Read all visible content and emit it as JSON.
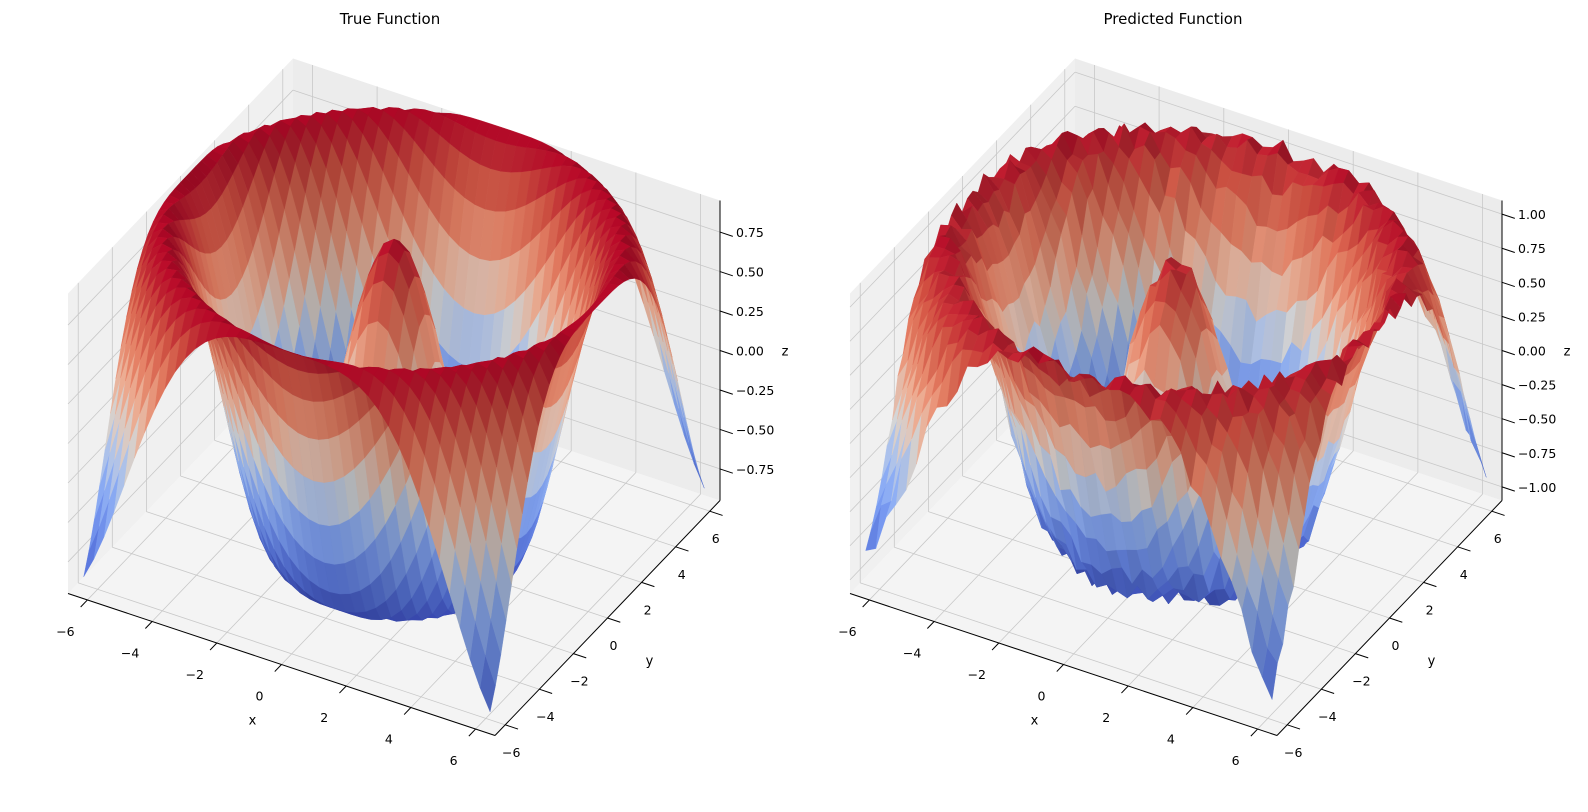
{
  "chart_data": [
    {
      "type": "surface3d",
      "title": "True Function",
      "xlabel": "x",
      "ylabel": "y",
      "zlabel": "z",
      "surface": "z = cos(sqrt(x^2 + y^2))",
      "x_range": [
        -6.283,
        6.283
      ],
      "y_range": [
        -6.283,
        6.283
      ],
      "zlim": [
        -0.95,
        0.95
      ],
      "colormap": "coolwarm",
      "xticks": [
        "−6",
        "−4",
        "−2",
        "0",
        "2",
        "4",
        "6"
      ],
      "xtick_values": [
        -6,
        -4,
        -2,
        0,
        2,
        4,
        6
      ],
      "yticks": [
        "−6",
        "−4",
        "−2",
        "0",
        "2",
        "4",
        "6"
      ],
      "ytick_values": [
        -6,
        -4,
        -2,
        0,
        2,
        4,
        6
      ],
      "zticks": [
        "−0.75",
        "−0.50",
        "−0.25",
        "0.00",
        "0.25",
        "0.50",
        "0.75"
      ],
      "ztick_values": [
        -0.75,
        -0.5,
        -0.25,
        0,
        0.25,
        0.5,
        0.75
      ],
      "noise_amplitude": 0
    },
    {
      "type": "surface3d",
      "title": "Predicted Function",
      "xlabel": "x",
      "ylabel": "y",
      "zlabel": "z",
      "surface": "z = cos(sqrt(x^2 + y^2))",
      "x_range": [
        -6.283,
        6.283
      ],
      "y_range": [
        -6.283,
        6.283
      ],
      "zlim": [
        -1.1,
        1.1
      ],
      "colormap": "coolwarm",
      "xticks": [
        "−6",
        "−4",
        "−2",
        "0",
        "2",
        "4",
        "6"
      ],
      "xtick_values": [
        -6,
        -4,
        -2,
        0,
        2,
        4,
        6
      ],
      "yticks": [
        "−6",
        "−4",
        "−2",
        "0",
        "2",
        "4",
        "6"
      ],
      "ytick_values": [
        -6,
        -4,
        -2,
        0,
        2,
        4,
        6
      ],
      "zticks": [
        "−1.00",
        "−0.75",
        "−0.50",
        "−0.25",
        "0.00",
        "0.25",
        "0.50",
        "0.75",
        "1.00"
      ],
      "ztick_values": [
        -1,
        -0.75,
        -0.5,
        -0.25,
        0,
        0.25,
        0.5,
        0.75,
        1
      ],
      "noise_amplitude": 0.07
    }
  ]
}
